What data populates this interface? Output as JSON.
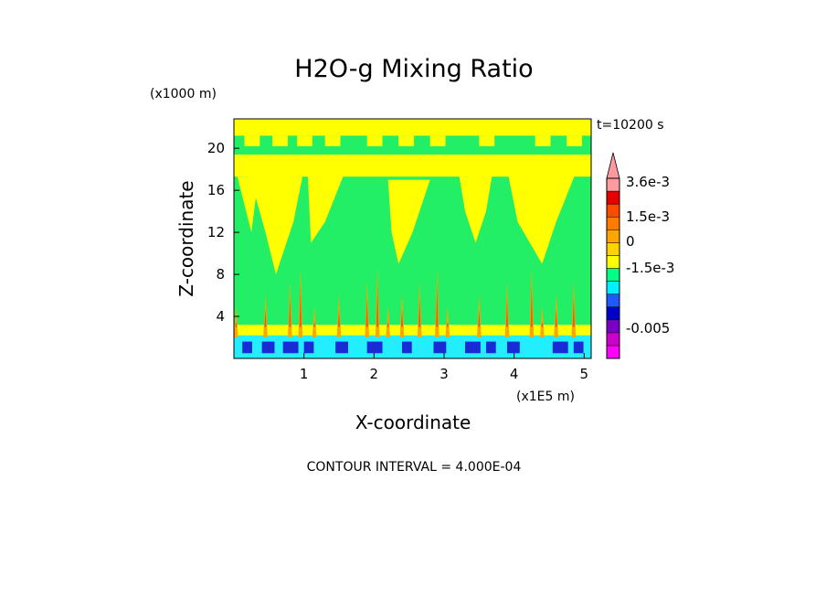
{
  "chart_data": {
    "type": "heatmap",
    "title": "H2O-g Mixing Ratio",
    "xlabel": "X-coordinate",
    "ylabel": "Z-coordinate",
    "x_unit": "(x1E5 m)",
    "y_unit": "(x1000 m)",
    "time_label": "t=10200 s",
    "footer": "CONTOUR INTERVAL = 4.000E-04",
    "x_ticks": [
      "1",
      "2",
      "3",
      "4",
      "5"
    ],
    "y_ticks": [
      "4",
      "8",
      "12",
      "16",
      "20"
    ],
    "xlim": [
      0,
      5.1
    ],
    "ylim": [
      0,
      22.8
    ],
    "colorbar": {
      "labels": [
        "3.6e-3",
        "1.5e-3",
        "0",
        "-1.5e-3",
        "-0.005"
      ],
      "colors": [
        "#ff00ff",
        "#cc00cc",
        "#7a00c8",
        "#0000c8",
        "#1e5aff",
        "#00f0ff",
        "#00ff88",
        "#ffff00",
        "#ffd200",
        "#ffa500",
        "#ff7a00",
        "#ff4a00",
        "#e60000",
        "#ff9aa0"
      ]
    },
    "field_colors": {
      "background": "#22ee66",
      "positive": "#ffff00",
      "low_layer": "#22eeff",
      "strong_negative": "#1a2bd6",
      "strong_positive": "#ff5500",
      "moderate_positive": "#ffa500"
    }
  }
}
